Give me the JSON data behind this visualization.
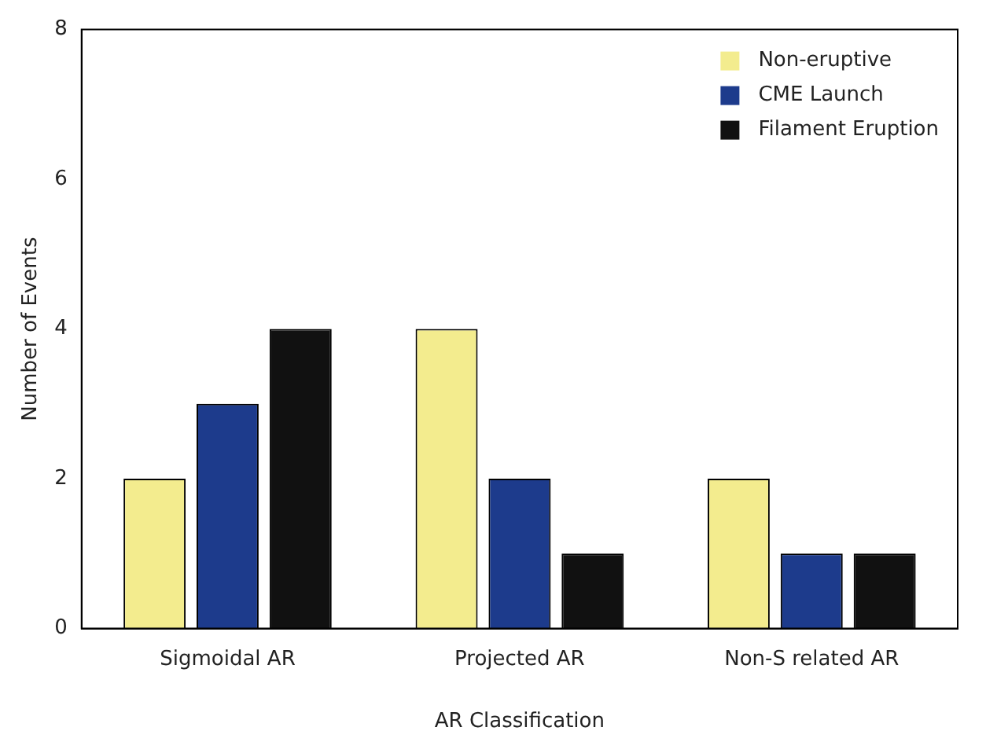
{
  "chart_data": {
    "type": "bar",
    "xlabel": "AR Classification",
    "ylabel": "Number of Events",
    "categories": [
      "Sigmoidal AR",
      "Projected AR",
      "Non-S related AR"
    ],
    "series": [
      {
        "name": "Non-eruptive",
        "color": "#f3ec8e",
        "values": [
          2,
          4,
          2
        ]
      },
      {
        "name": "CME Launch",
        "color": "#1d3b8c",
        "values": [
          3,
          2,
          1
        ]
      },
      {
        "name": "Filament Eruption",
        "color": "#111111",
        "values": [
          4,
          1,
          1
        ]
      }
    ],
    "ylim": [
      0,
      8
    ],
    "yticks": [
      0,
      2,
      4,
      6,
      8
    ],
    "grid": false,
    "legend": "top right"
  }
}
